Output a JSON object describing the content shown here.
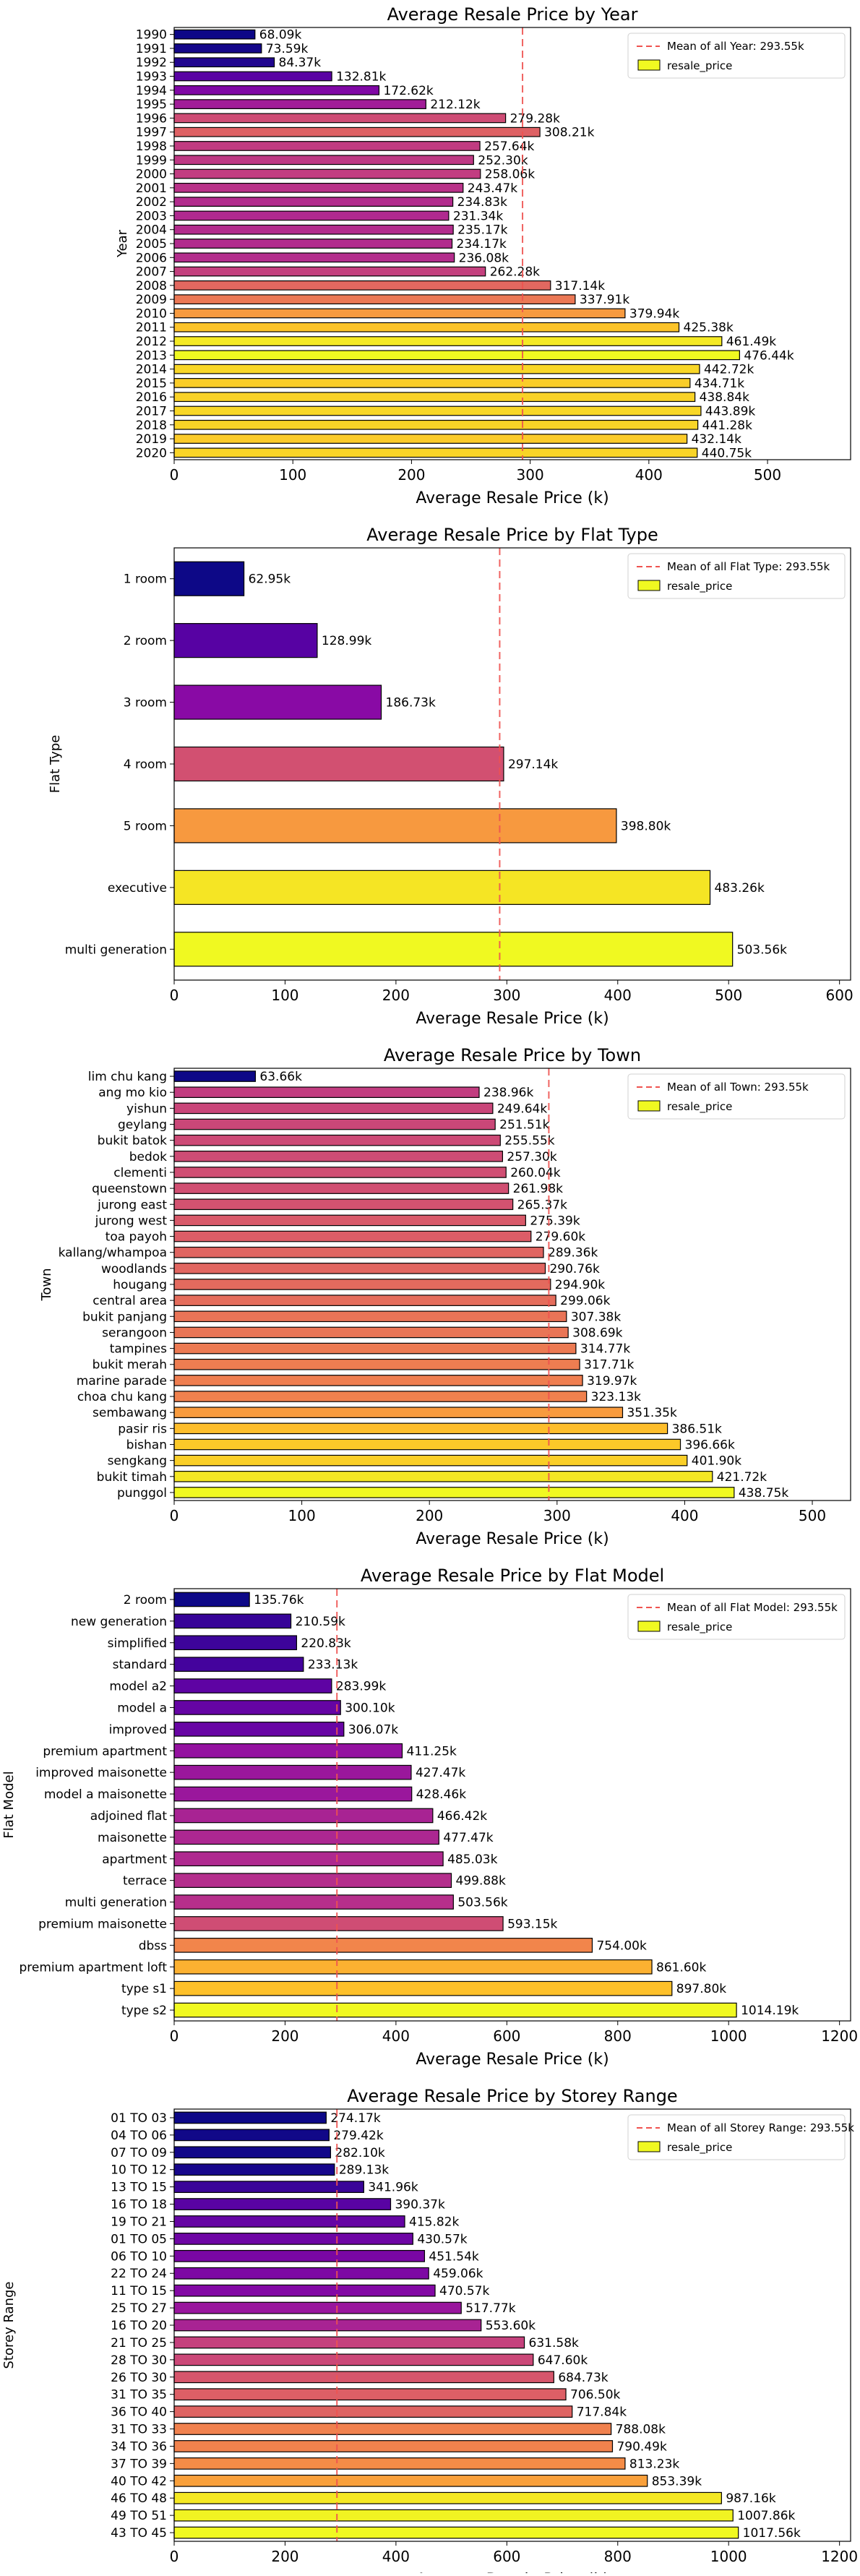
{
  "mean_label_prefix": "Mean of all ",
  "mean_label_suffix": ": 293.55k",
  "legend_series": "resale_price",
  "chart_data": [
    {
      "type": "bar",
      "orientation": "horizontal",
      "title": "Average Resale Price by Year",
      "xlabel": "Average Resale Price (k)",
      "ylabel": "Year",
      "mean_label": "Mean of all Year: 293.55k",
      "mean": 293.55,
      "xlim": [
        0,
        570
      ],
      "xticks": [
        0,
        100,
        200,
        300,
        400,
        500
      ],
      "legend_position": "top-right",
      "categories": [
        "1990",
        "1991",
        "1992",
        "1993",
        "1994",
        "1995",
        "1996",
        "1997",
        "1998",
        "1999",
        "2000",
        "2001",
        "2002",
        "2003",
        "2004",
        "2005",
        "2006",
        "2007",
        "2008",
        "2009",
        "2010",
        "2011",
        "2012",
        "2013",
        "2014",
        "2015",
        "2016",
        "2017",
        "2018",
        "2019",
        "2020"
      ],
      "values": [
        68.09,
        73.59,
        84.37,
        132.81,
        172.62,
        212.12,
        279.28,
        308.21,
        257.64,
        252.3,
        258.06,
        243.47,
        234.83,
        231.34,
        235.17,
        234.17,
        236.08,
        262.28,
        317.14,
        337.91,
        379.94,
        425.38,
        461.49,
        476.44,
        442.72,
        434.71,
        438.84,
        443.89,
        441.28,
        432.14,
        440.75
      ],
      "labels": [
        "68.09k",
        "73.59k",
        "84.37k",
        "132.81k",
        "172.62k",
        "212.12k",
        "279.28k",
        "308.21k",
        "257.64k",
        "252.30k",
        "258.06k",
        "243.47k",
        "234.83k",
        "231.34k",
        "235.17k",
        "234.17k",
        "236.08k",
        "262.28k",
        "317.14k",
        "337.91k",
        "379.94k",
        "425.38k",
        "461.49k",
        "476.44k",
        "442.72k",
        "434.71k",
        "438.84k",
        "443.89k",
        "441.28k",
        "432.14k",
        "440.75k"
      ]
    },
    {
      "type": "bar",
      "orientation": "horizontal",
      "title": "Average Resale Price by Flat Type",
      "xlabel": "Average Resale Price (k)",
      "ylabel": "Flat Type",
      "mean_label": "Mean of all Flat Type: 293.55k",
      "mean": 293.55,
      "xlim": [
        0,
        610
      ],
      "xticks": [
        0,
        100,
        200,
        300,
        400,
        500,
        600
      ],
      "legend_position": "top-right",
      "categories": [
        "1 room",
        "2 room",
        "3 room",
        "4 room",
        "5 room",
        "executive",
        "multi generation"
      ],
      "values": [
        62.95,
        128.99,
        186.73,
        297.14,
        398.8,
        483.26,
        503.56
      ],
      "labels": [
        "62.95k",
        "128.99k",
        "186.73k",
        "297.14k",
        "398.80k",
        "483.26k",
        "503.56k"
      ]
    },
    {
      "type": "bar",
      "orientation": "horizontal",
      "title": "Average Resale Price by Town",
      "xlabel": "Average Resale Price (k)",
      "ylabel": "Town",
      "mean_label": "Mean of all Town: 293.55k",
      "mean": 293.55,
      "xlim": [
        0,
        530
      ],
      "xticks": [
        0,
        100,
        200,
        300,
        400,
        500
      ],
      "legend_position": "top-right",
      "categories": [
        "lim chu kang",
        "ang mo kio",
        "yishun",
        "geylang",
        "bukit batok",
        "bedok",
        "clementi",
        "queenstown",
        "jurong east",
        "jurong west",
        "toa payoh",
        "kallang/whampoa",
        "woodlands",
        "hougang",
        "central area",
        "bukit panjang",
        "serangoon",
        "tampines",
        "bukit merah",
        "marine parade",
        "choa chu kang",
        "sembawang",
        "pasir ris",
        "bishan",
        "sengkang",
        "bukit timah",
        "punggol"
      ],
      "values": [
        63.66,
        238.96,
        249.64,
        251.51,
        255.55,
        257.3,
        260.04,
        261.98,
        265.37,
        275.39,
        279.6,
        289.36,
        290.76,
        294.9,
        299.06,
        307.38,
        308.69,
        314.77,
        317.71,
        319.97,
        323.13,
        351.35,
        386.51,
        396.66,
        401.9,
        421.72,
        438.75
      ],
      "labels": [
        "63.66k",
        "238.96k",
        "249.64k",
        "251.51k",
        "255.55k",
        "257.30k",
        "260.04k",
        "261.98k",
        "265.37k",
        "275.39k",
        "279.60k",
        "289.36k",
        "290.76k",
        "294.90k",
        "299.06k",
        "307.38k",
        "308.69k",
        "314.77k",
        "317.71k",
        "319.97k",
        "323.13k",
        "351.35k",
        "386.51k",
        "396.66k",
        "401.90k",
        "421.72k",
        "438.75k"
      ]
    },
    {
      "type": "bar",
      "orientation": "horizontal",
      "title": "Average Resale Price by Flat Model",
      "xlabel": "Average Resale Price (k)",
      "ylabel": "Flat Model",
      "mean_label": "Mean of all Flat Model: 293.55k",
      "mean": 293.55,
      "xlim": [
        0,
        1220
      ],
      "xticks": [
        0,
        200,
        400,
        600,
        800,
        1000,
        1200
      ],
      "legend_position": "top-right",
      "categories": [
        "2 room",
        "new generation",
        "simplified",
        "standard",
        "model a2",
        "model a",
        "improved",
        "premium apartment",
        "improved maisonette",
        "model a maisonette",
        "adjoined flat",
        "maisonette",
        "apartment",
        "terrace",
        "multi generation",
        "premium maisonette",
        "dbss",
        "premium apartment loft",
        "type s1",
        "type s2"
      ],
      "values": [
        135.76,
        210.59,
        220.83,
        233.13,
        283.99,
        300.1,
        306.07,
        411.25,
        427.47,
        428.46,
        466.42,
        477.47,
        485.03,
        499.88,
        503.56,
        593.15,
        754.0,
        861.6,
        897.8,
        1014.19
      ],
      "labels": [
        "135.76k",
        "210.59k",
        "220.83k",
        "233.13k",
        "283.99k",
        "300.10k",
        "306.07k",
        "411.25k",
        "427.47k",
        "428.46k",
        "466.42k",
        "477.47k",
        "485.03k",
        "499.88k",
        "503.56k",
        "593.15k",
        "754.00k",
        "861.60k",
        "897.80k",
        "1014.19k"
      ]
    },
    {
      "type": "bar",
      "orientation": "horizontal",
      "title": "Average Resale Price by Storey Range",
      "xlabel": "Average Resale Price (k)",
      "ylabel": "Storey Range",
      "mean_label": "Mean of all Storey Range: 293.55k",
      "mean": 293.55,
      "xlim": [
        0,
        1220
      ],
      "xticks": [
        0,
        200,
        400,
        600,
        800,
        1000,
        1200
      ],
      "legend_position": "top-right",
      "categories": [
        "01 TO 03",
        "04 TO 06",
        "07 TO 09",
        "10 TO 12",
        "13 TO 15",
        "16 TO 18",
        "19 TO 21",
        "01 TO 05",
        "06 TO 10",
        "22 TO 24",
        "11 TO 15",
        "25 TO 27",
        "16 TO 20",
        "21 TO 25",
        "28 TO 30",
        "26 TO 30",
        "31 TO 35",
        "36 TO 40",
        "31 TO 33",
        "34 TO 36",
        "37 TO 39",
        "40 TO 42",
        "46 TO 48",
        "49 TO 51",
        "43 TO 45"
      ],
      "values": [
        274.17,
        279.42,
        282.1,
        289.13,
        341.96,
        390.37,
        415.82,
        430.57,
        451.54,
        459.06,
        470.57,
        517.77,
        553.6,
        631.58,
        647.6,
        684.73,
        706.5,
        717.84,
        788.08,
        790.49,
        813.23,
        853.39,
        987.16,
        1007.86,
        1017.56
      ],
      "labels": [
        "274.17k",
        "279.42k",
        "282.10k",
        "289.13k",
        "341.96k",
        "390.37k",
        "415.82k",
        "430.57k",
        "451.54k",
        "459.06k",
        "470.57k",
        "517.77k",
        "553.60k",
        "631.58k",
        "647.60k",
        "684.73k",
        "706.50k",
        "717.84k",
        "788.08k",
        "790.49k",
        "813.23k",
        "853.39k",
        "987.16k",
        "1007.86k",
        "1017.56k"
      ]
    }
  ]
}
